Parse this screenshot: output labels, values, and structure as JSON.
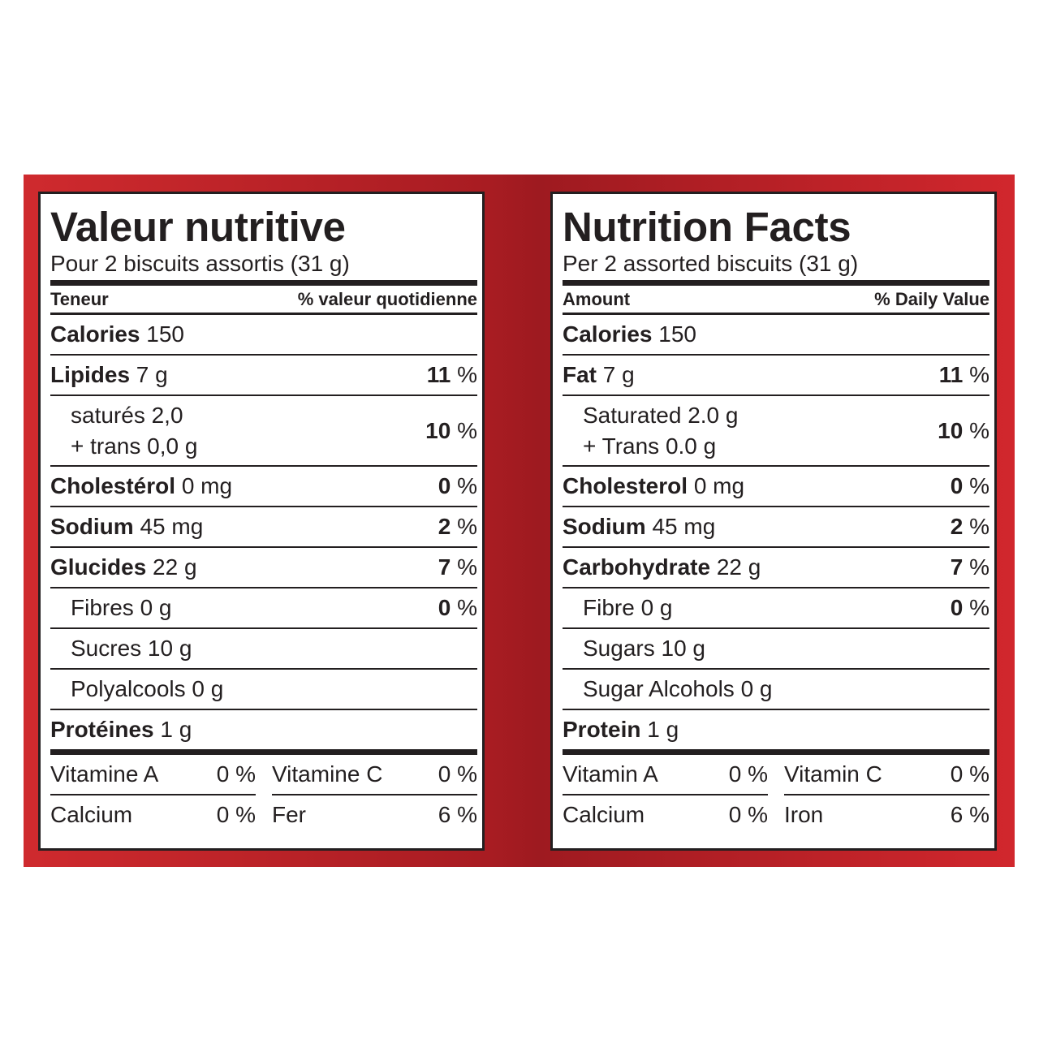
{
  "colors": {
    "band_red": "#c4252b",
    "ink": "#231f20"
  },
  "french": {
    "title": "Valeur nutritive",
    "serving": "Pour 2 biscuits assortis (31 g)",
    "header_left": "Teneur",
    "header_right": "% valeur quotidienne",
    "calories_label": "Calories",
    "calories_value": "150",
    "rows": [
      {
        "name": "Lipides",
        "amount": "7 g",
        "pct_num": "11",
        "pct_sign": "%"
      },
      {
        "line1": "saturés 2,0",
        "line2": "+ trans 0,0 g",
        "pct_num": "10",
        "pct_sign": "%"
      },
      {
        "name": "Cholestérol",
        "amount": "0 mg",
        "pct_num": "0",
        "pct_sign": "%"
      },
      {
        "name": "Sodium",
        "amount": "45 mg",
        "pct_num": "2",
        "pct_sign": "%"
      },
      {
        "name": "Glucides",
        "amount": "22 g",
        "pct_num": "7",
        "pct_sign": "%"
      },
      {
        "text": "Fibres 0 g",
        "pct_num": "0",
        "pct_sign": "%"
      },
      {
        "text": "Sucres 10 g"
      },
      {
        "text": "Polyalcools 0 g"
      },
      {
        "name": "Protéines",
        "amount": "1 g"
      }
    ],
    "vitamins": [
      {
        "name": "Vitamine A",
        "pct": "0 %"
      },
      {
        "name": "Calcium",
        "pct": "0 %"
      },
      {
        "name": "Vitamine C",
        "pct": "0 %"
      },
      {
        "name": "Fer",
        "pct": "6 %"
      }
    ]
  },
  "english": {
    "title": "Nutrition Facts",
    "serving": "Per 2 assorted biscuits (31 g)",
    "header_left": "Amount",
    "header_right": "% Daily Value",
    "calories_label": "Calories",
    "calories_value": "150",
    "rows": [
      {
        "name": "Fat",
        "amount": "7 g",
        "pct_num": "11",
        "pct_sign": "%"
      },
      {
        "line1": "Saturated 2.0 g",
        "line2": "+ Trans 0.0 g",
        "pct_num": "10",
        "pct_sign": "%"
      },
      {
        "name": "Cholesterol",
        "amount": "0 mg",
        "pct_num": "0",
        "pct_sign": "%"
      },
      {
        "name": "Sodium",
        "amount": "45 mg",
        "pct_num": "2",
        "pct_sign": "%"
      },
      {
        "name": "Carbohydrate",
        "amount": "22 g",
        "pct_num": "7",
        "pct_sign": "%"
      },
      {
        "text": "Fibre 0 g",
        "pct_num": "0",
        "pct_sign": "%"
      },
      {
        "text": "Sugars 10 g"
      },
      {
        "text": "Sugar Alcohols 0 g"
      },
      {
        "name": "Protein",
        "amount": "1 g"
      }
    ],
    "vitamins": [
      {
        "name": "Vitamin A",
        "pct": "0 %"
      },
      {
        "name": "Calcium",
        "pct": "0 %"
      },
      {
        "name": "Vitamin C",
        "pct": "0 %"
      },
      {
        "name": "Iron",
        "pct": "6 %"
      }
    ]
  }
}
